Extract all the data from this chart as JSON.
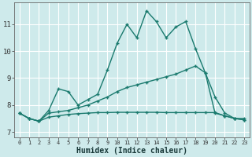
{
  "xlabel": "Humidex (Indice chaleur)",
  "x_ticks": [
    0,
    1,
    2,
    3,
    4,
    5,
    6,
    7,
    8,
    9,
    10,
    11,
    12,
    13,
    14,
    15,
    16,
    17,
    18,
    19,
    20,
    21,
    22,
    23
  ],
  "ylim": [
    6.8,
    11.8
  ],
  "xlim": [
    -0.5,
    23.5
  ],
  "yticks": [
    7,
    8,
    9,
    10,
    11
  ],
  "bg_color": "#ceeaeb",
  "grid_color": "#ffffff",
  "line_color": "#1a7a6e",
  "line1_y": [
    7.7,
    7.5,
    7.4,
    7.8,
    8.6,
    8.5,
    8.0,
    8.2,
    8.4,
    9.3,
    10.3,
    11.0,
    10.5,
    11.5,
    11.1,
    10.5,
    10.9,
    11.1,
    10.1,
    9.2,
    8.3,
    7.7,
    7.5,
    7.5
  ],
  "line2_y": [
    7.7,
    7.5,
    7.4,
    7.7,
    7.75,
    7.8,
    7.9,
    8.0,
    8.15,
    8.3,
    8.5,
    8.65,
    8.75,
    8.85,
    8.95,
    9.05,
    9.15,
    9.3,
    9.45,
    9.2,
    7.7,
    7.6,
    7.5,
    7.45
  ],
  "line3_y": [
    7.7,
    7.5,
    7.4,
    7.55,
    7.6,
    7.65,
    7.68,
    7.7,
    7.72,
    7.72,
    7.73,
    7.73,
    7.73,
    7.73,
    7.73,
    7.72,
    7.72,
    7.72,
    7.72,
    7.72,
    7.72,
    7.6,
    7.5,
    7.45
  ]
}
